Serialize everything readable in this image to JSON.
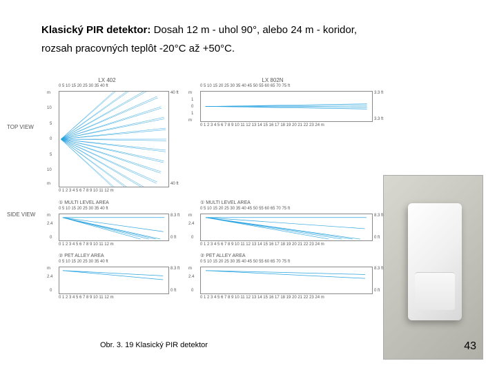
{
  "heading": {
    "title_label": "Klasický PIR detektor:",
    "text_line1": " Dosah 12 m - uhol 90°, alebo 24 m - koridor,",
    "text_line2": "rozsah pracovných teplôt -20°C až +50°C."
  },
  "row_labels": {
    "top": "TOP VIEW",
    "side": "SIDE VIEW"
  },
  "charts": {
    "lx402": {
      "title": "LX 402",
      "x_ticks": "0  5  10  15  20  25  30  35  40 ft",
      "x_ticks_m": "0  1  2  3  4  5  6  7  8  9  10  11  12 m",
      "y_ticks_ft_top": "40 ft",
      "y_ticks_ft_bot": "40 ft",
      "y_vals": [
        "m",
        "10",
        "5",
        "0",
        "5",
        "10",
        "m"
      ],
      "multi_title": "① MULTI LEVEL AREA",
      "pet_title": "② PET ALLEY AREA",
      "multi_x_ticks": "0  5  10  15  20  25  30  35  40 ft",
      "multi_x_ticks_m": "0  1  2  3  4  5  6  7  8  9  10  11  12 m",
      "multi_y": [
        "m",
        "2.4",
        "0"
      ],
      "multi_y_ft": "8.3 ft",
      "multi_y_ft0": "0 ft"
    },
    "lx802n": {
      "title": "LX 802N",
      "x_ticks": "0  5  10  15  20  25  30  35  40  45  50  55  60  65  70  75 ft",
      "x_ticks_m": "0  1  2  3  4  5  6  7  8  9  10 11 12 13 14 15 16 17 18 19 20 21 22 23 24 m",
      "y_vals": [
        "m",
        "1",
        "0",
        "1",
        "m"
      ],
      "y_ft_top": "3.3 ft",
      "y_ft_bot": "3.3 ft",
      "multi_title": "① MULTI LEVEL AREA",
      "pet_title": "② PET ALLEY AREA",
      "multi_y": [
        "m",
        "2.4",
        "0"
      ],
      "multi_y_ft": "8.3 ft",
      "multi_y_ft0": "0 ft"
    }
  },
  "visual": {
    "line_color": "#29a3e0",
    "grid_color": "#888888",
    "fan_angles_lx402": [
      -42,
      -36,
      -30,
      -24,
      -18,
      -12,
      -6,
      0,
      6,
      12,
      18,
      24,
      30,
      36,
      42
    ],
    "corridor_offsets": [
      -4,
      -2,
      0,
      2,
      4
    ],
    "side_multi_angles": [
      0,
      -8,
      -16,
      -24,
      -32,
      -40
    ],
    "side_pet_angle": -6
  },
  "caption": "Obr. 3. 19 Klasický PIR detektor",
  "page_number": "43"
}
